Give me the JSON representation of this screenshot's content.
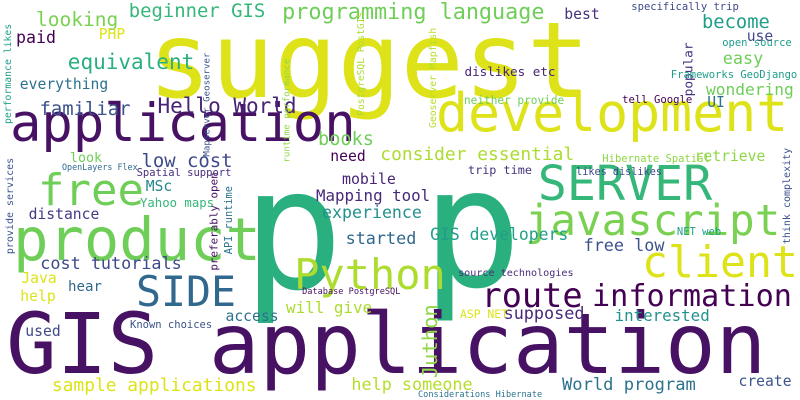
{
  "words": [
    {
      "text": "p",
      "color": "#2ab07f"
    },
    {
      "text": "p",
      "color": "#2ab07f"
    },
    {
      "text": "suggest",
      "color": "#dde318"
    },
    {
      "text": "GIS application",
      "color": "#471164"
    },
    {
      "text": "application",
      "color": "#471164"
    },
    {
      "text": "development",
      "color": "#dde318"
    },
    {
      "text": "javascript",
      "color": "#7ad151"
    },
    {
      "text": "product",
      "color": "#6ece58"
    },
    {
      "text": "SERVER",
      "color": "#35b779"
    },
    {
      "text": "free",
      "color": "#6ece58"
    },
    {
      "text": "Python",
      "color": "#addc30"
    },
    {
      "text": "client",
      "color": "#dde318"
    },
    {
      "text": "SIDE",
      "color": "#31688e"
    },
    {
      "text": "information",
      "color": "#440154"
    },
    {
      "text": "route",
      "color": "#440154"
    },
    {
      "text": "programming language",
      "color": "#6ece58"
    },
    {
      "text": "looking",
      "color": "#7ad151"
    },
    {
      "text": "beginner GIS",
      "color": "#35b779"
    },
    {
      "text": "equivalent",
      "color": "#2ab07f"
    },
    {
      "text": "Hello World",
      "color": "#482475"
    },
    {
      "text": "familiar",
      "color": "#3b528b"
    },
    {
      "text": "everything",
      "color": "#2c728e"
    },
    {
      "text": "paid",
      "color": "#440154"
    },
    {
      "text": "PHP",
      "color": "#dde318"
    },
    {
      "text": "low cost",
      "color": "#3e4989"
    },
    {
      "text": "books",
      "color": "#6ece58"
    },
    {
      "text": "consider essential",
      "color": "#addc30"
    },
    {
      "text": "need",
      "color": "#440154"
    },
    {
      "text": "look",
      "color": "#6ece58"
    },
    {
      "text": "MSc",
      "color": "#25858e"
    },
    {
      "text": "mobile",
      "color": "#482475"
    },
    {
      "text": "Mapping tool",
      "color": "#482878"
    },
    {
      "text": "experience",
      "color": "#21918c"
    },
    {
      "text": "distance",
      "color": "#443983"
    },
    {
      "text": "started",
      "color": "#31688e"
    },
    {
      "text": "GIS developers",
      "color": "#1f9e89"
    },
    {
      "text": "cost tutorials",
      "color": "#3e4989"
    },
    {
      "text": "free low",
      "color": "#3b528b"
    },
    {
      "text": "Java",
      "color": "#dde318"
    },
    {
      "text": "help",
      "color": "#dde318"
    },
    {
      "text": "hear",
      "color": "#31688e"
    },
    {
      "text": "will give",
      "color": "#addc30"
    },
    {
      "text": "access",
      "color": "#2c728e"
    },
    {
      "text": "Juthon",
      "color": "#8fd744"
    },
    {
      "text": "supposed",
      "color": "#482878"
    },
    {
      "text": "interested",
      "color": "#21918c"
    },
    {
      "text": "used",
      "color": "#3e4989"
    },
    {
      "text": "sample applications",
      "color": "#dde318"
    },
    {
      "text": "help someone",
      "color": "#b5de2b"
    },
    {
      "text": "World program",
      "color": "#2c728e"
    },
    {
      "text": "create",
      "color": "#3b528b"
    },
    {
      "text": "best",
      "color": "#46327e"
    },
    {
      "text": "become",
      "color": "#1f9e89"
    },
    {
      "text": "easy",
      "color": "#6ece58"
    },
    {
      "text": "popular",
      "color": "#46327e"
    },
    {
      "text": "use",
      "color": "#3e4989"
    },
    {
      "text": "wondering",
      "color": "#6ece58"
    },
    {
      "text": "UI",
      "color": "#2c728e"
    },
    {
      "text": "retrieve",
      "color": "#8fd744"
    },
    {
      "text": "tell Google",
      "color": "#440154"
    },
    {
      "text": "dislikes etc",
      "color": "#482475"
    },
    {
      "text": "neither provide",
      "color": "#6ece58"
    },
    {
      "text": "likes dislikes",
      "color": "#3e4989"
    },
    {
      "text": "trip time",
      "color": "#46327e"
    },
    {
      "text": "Yahoo maps",
      "color": "#35b779"
    },
    {
      "text": "open source",
      "color": "#1f9e89"
    },
    {
      "text": "specifically trip",
      "color": "#3e4989"
    },
    {
      "text": "Frameworks GeoDjango",
      "color": "#1f9e89"
    },
    {
      "text": "OpenLayers Flex",
      "color": "#31688e"
    },
    {
      "text": "Spatial support",
      "color": "#472d7b"
    },
    {
      "text": "Hibernate Spatial",
      "color": "#8fd744"
    },
    {
      "text": "NET web",
      "color": "#1f9e89"
    },
    {
      "text": "source technologies",
      "color": "#472d7b"
    },
    {
      "text": "Database PostgreSQL",
      "color": "#471164"
    },
    {
      "text": "Known choices",
      "color": "#3b528b"
    },
    {
      "text": "ASP NET",
      "color": "#dde318"
    },
    {
      "text": "Considerations Hibernate",
      "color": "#2c728e"
    },
    {
      "text": "performance likes",
      "color": "#1f9e89"
    },
    {
      "text": "provide services",
      "color": "#3b528b"
    },
    {
      "text": "Mapserver Geoserver",
      "color": "#3b528b"
    },
    {
      "text": "PostgreSQL PostGIS",
      "color": "#addc30"
    },
    {
      "text": "runtime performance",
      "color": "#8fd744"
    },
    {
      "text": "Geoserver Mapfish",
      "color": "#b5de2b"
    },
    {
      "text": "preferably open",
      "color": "#471164"
    },
    {
      "text": "API runtime",
      "color": "#2c728e"
    },
    {
      "text": "think complexity",
      "color": "#3b528b"
    }
  ]
}
